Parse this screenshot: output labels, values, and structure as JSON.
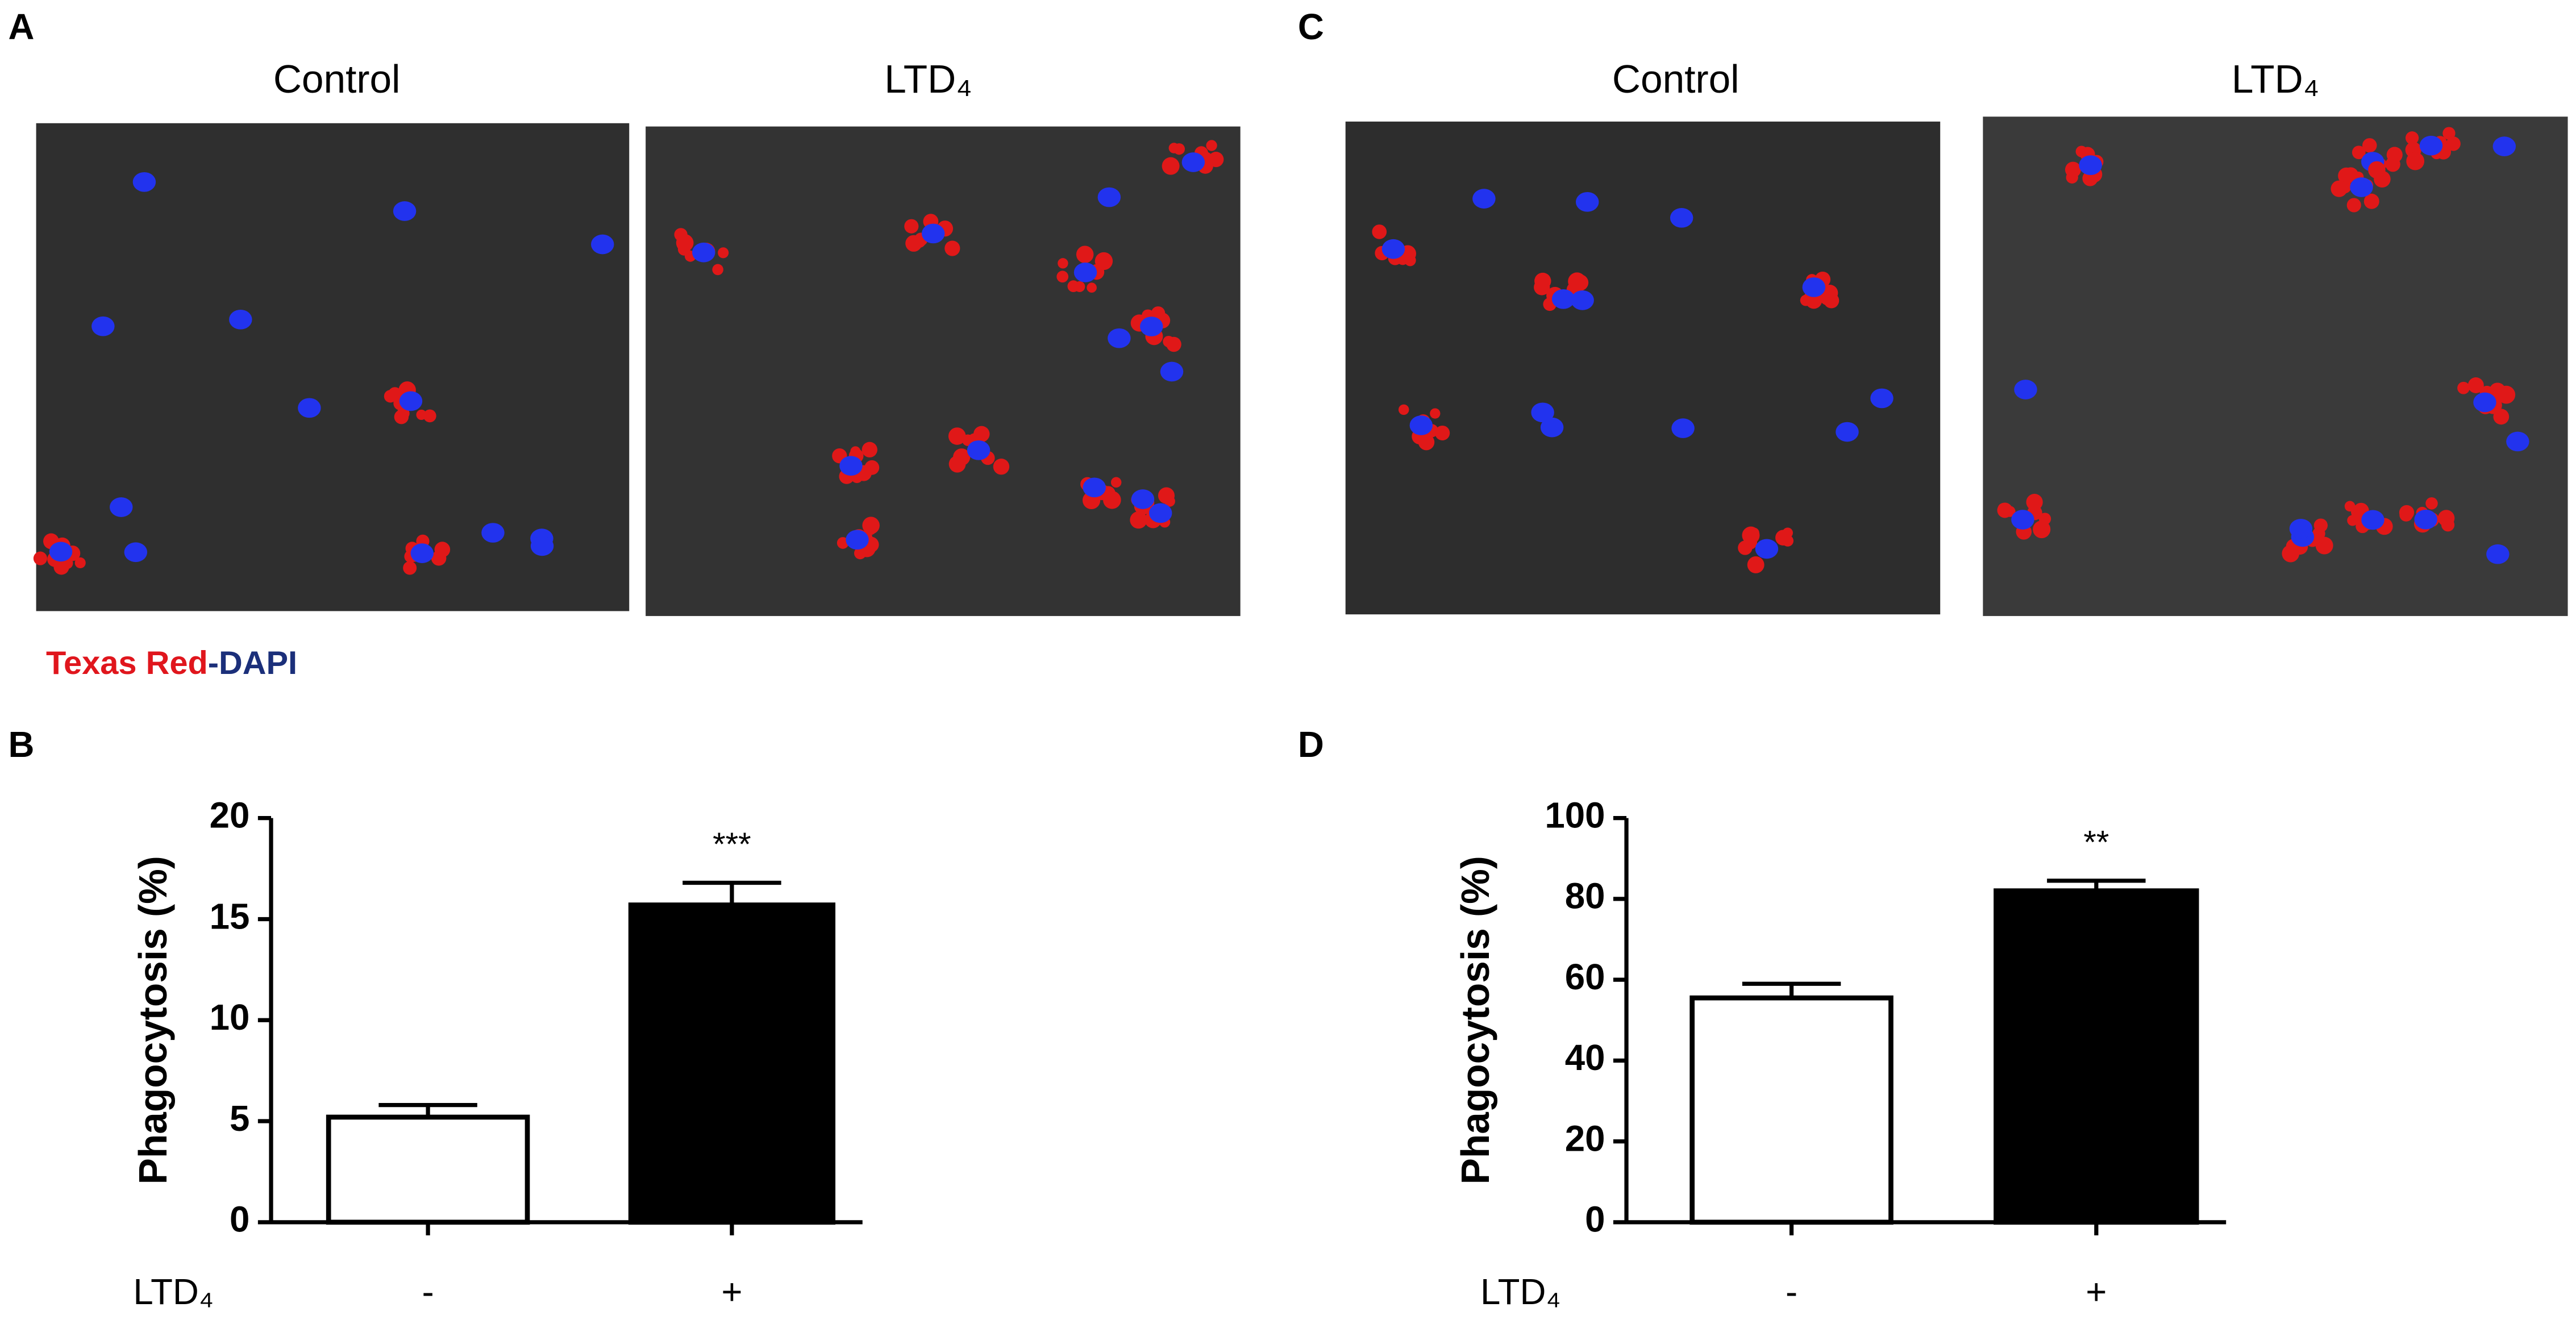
{
  "panel_labels": [
    "A",
    "B",
    "C",
    "D"
  ],
  "images": [
    {
      "panel": "A",
      "titles": [
        "Control",
        "LTD₄"
      ]
    },
    {
      "panel": "C",
      "titles": [
        "Control",
        "LTD₄"
      ]
    }
  ],
  "stain_legend": {
    "parts": [
      {
        "text": "Texas Red",
        "color": "#e0161d"
      },
      {
        "text": "-DAPI",
        "color": "#1b2f7a"
      }
    ]
  },
  "chart_data": [
    {
      "type": "bar",
      "panel": "B",
      "ylabel": "Phagocytosis (%)",
      "xlabel": "LTD₄",
      "categories": [
        "-",
        "+"
      ],
      "values": [
        5.2,
        15.7
      ],
      "errors": [
        0.6,
        1.1
      ],
      "colors": [
        "#ffffff",
        "#000000"
      ],
      "annotation": "***",
      "ylim": [
        0,
        20
      ],
      "yticks": [
        0,
        5,
        10,
        15,
        20
      ]
    },
    {
      "type": "bar",
      "panel": "D",
      "ylabel": "Phagocytosis (%)",
      "xlabel": "LTD₄",
      "categories": [
        "-",
        "+"
      ],
      "values": [
        55.5,
        82
      ],
      "errors": [
        3.5,
        2.5
      ],
      "colors": [
        "#ffffff",
        "#000000"
      ],
      "annotation": "**",
      "ylim": [
        0,
        100
      ],
      "yticks": [
        0,
        20,
        40,
        60,
        80,
        100
      ]
    }
  ]
}
